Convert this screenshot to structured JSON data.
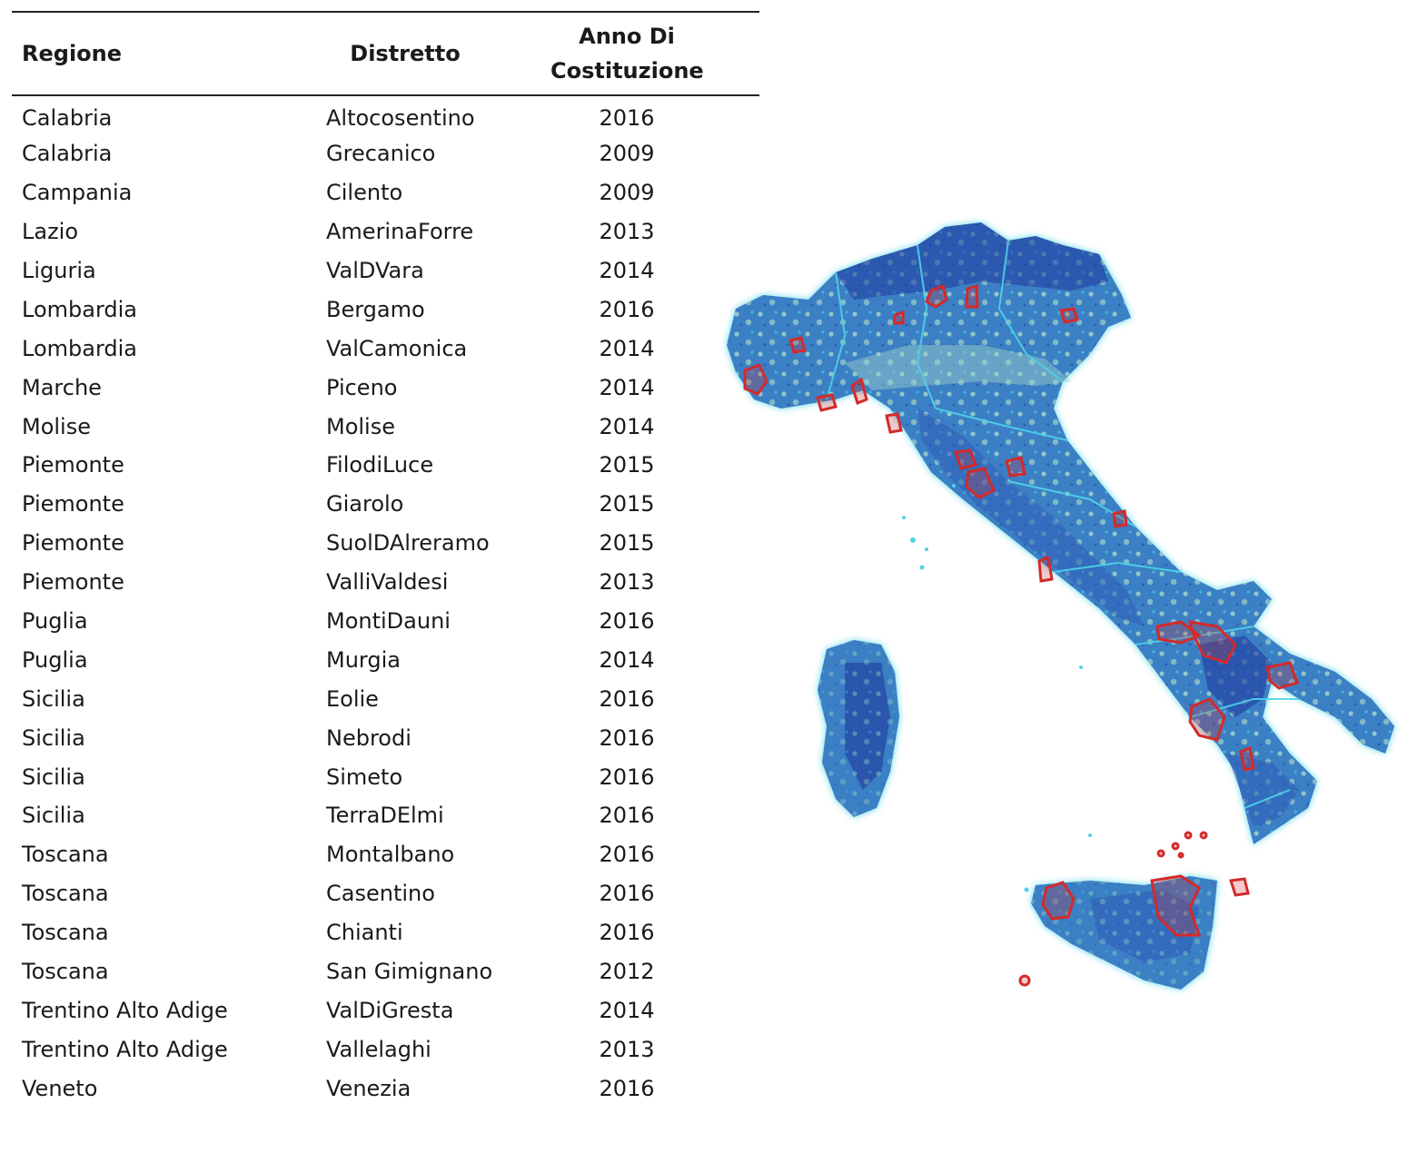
{
  "table": {
    "headers": {
      "regione": "Regione",
      "distretto": "Distretto",
      "anno_line1": "Anno Di",
      "anno_line2": "Costituzione"
    },
    "rows": [
      {
        "regione": "Calabria",
        "distretto": "Altocosentino",
        "anno": "2016"
      },
      {
        "regione": "Calabria",
        "distretto": "Grecanico",
        "anno": "2009"
      },
      {
        "regione": "Campania",
        "distretto": "Cilento",
        "anno": "2009"
      },
      {
        "regione": "Lazio",
        "distretto": "AmerinaForre",
        "anno": "2013"
      },
      {
        "regione": "Liguria",
        "distretto": "ValDVara",
        "anno": "2014"
      },
      {
        "regione": "Lombardia",
        "distretto": "Bergamo",
        "anno": "2016"
      },
      {
        "regione": "Lombardia",
        "distretto": "ValCamonica",
        "anno": "2014"
      },
      {
        "regione": "Marche",
        "distretto": "Piceno",
        "anno": "2014"
      },
      {
        "regione": "Molise",
        "distretto": "Molise",
        "anno": "2014"
      },
      {
        "regione": "Piemonte",
        "distretto": "FilodiLuce",
        "anno": "2015"
      },
      {
        "regione": "Piemonte",
        "distretto": "Giarolo",
        "anno": "2015"
      },
      {
        "regione": "Piemonte",
        "distretto": "SuolDAlreramo",
        "anno": "2015"
      },
      {
        "regione": "Piemonte",
        "distretto": "ValliValdesi",
        "anno": "2013"
      },
      {
        "regione": "Puglia",
        "distretto": "MontiDauni",
        "anno": "2016"
      },
      {
        "regione": "Puglia",
        "distretto": "Murgia",
        "anno": "2014"
      },
      {
        "regione": "Sicilia",
        "distretto": "Eolie",
        "anno": "2016"
      },
      {
        "regione": "Sicilia",
        "distretto": "Nebrodi",
        "anno": "2016"
      },
      {
        "regione": "Sicilia",
        "distretto": "Simeto",
        "anno": "2016"
      },
      {
        "regione": "Sicilia",
        "distretto": "TerraDElmi",
        "anno": "2016"
      },
      {
        "regione": "Toscana",
        "distretto": "Montalbano",
        "anno": "2016"
      },
      {
        "regione": "Toscana",
        "distretto": "Casentino",
        "anno": "2016"
      },
      {
        "regione": "Toscana",
        "distretto": "Chianti",
        "anno": "2016"
      },
      {
        "regione": "Toscana",
        "distretto": "San Gimignano",
        "anno": "2012"
      },
      {
        "regione": "Trentino Alto Adige",
        "distretto": "ValDiGresta",
        "anno": "2014"
      },
      {
        "regione": "Trentino Alto Adige",
        "distretto": "Vallelaghi",
        "anno": "2013"
      },
      {
        "regione": "Veneto",
        "distretto": "Venezia",
        "anno": "2016"
      }
    ]
  },
  "map": {
    "colors": {
      "coast_glow": "#4fd3e8",
      "base_blue": "#3b7fc4",
      "mid_blue": "#2f5fb8",
      "dark_blue": "#1f3aa0",
      "lowland": "#9ed3c9",
      "district_outline": "#d42a2a"
    }
  }
}
